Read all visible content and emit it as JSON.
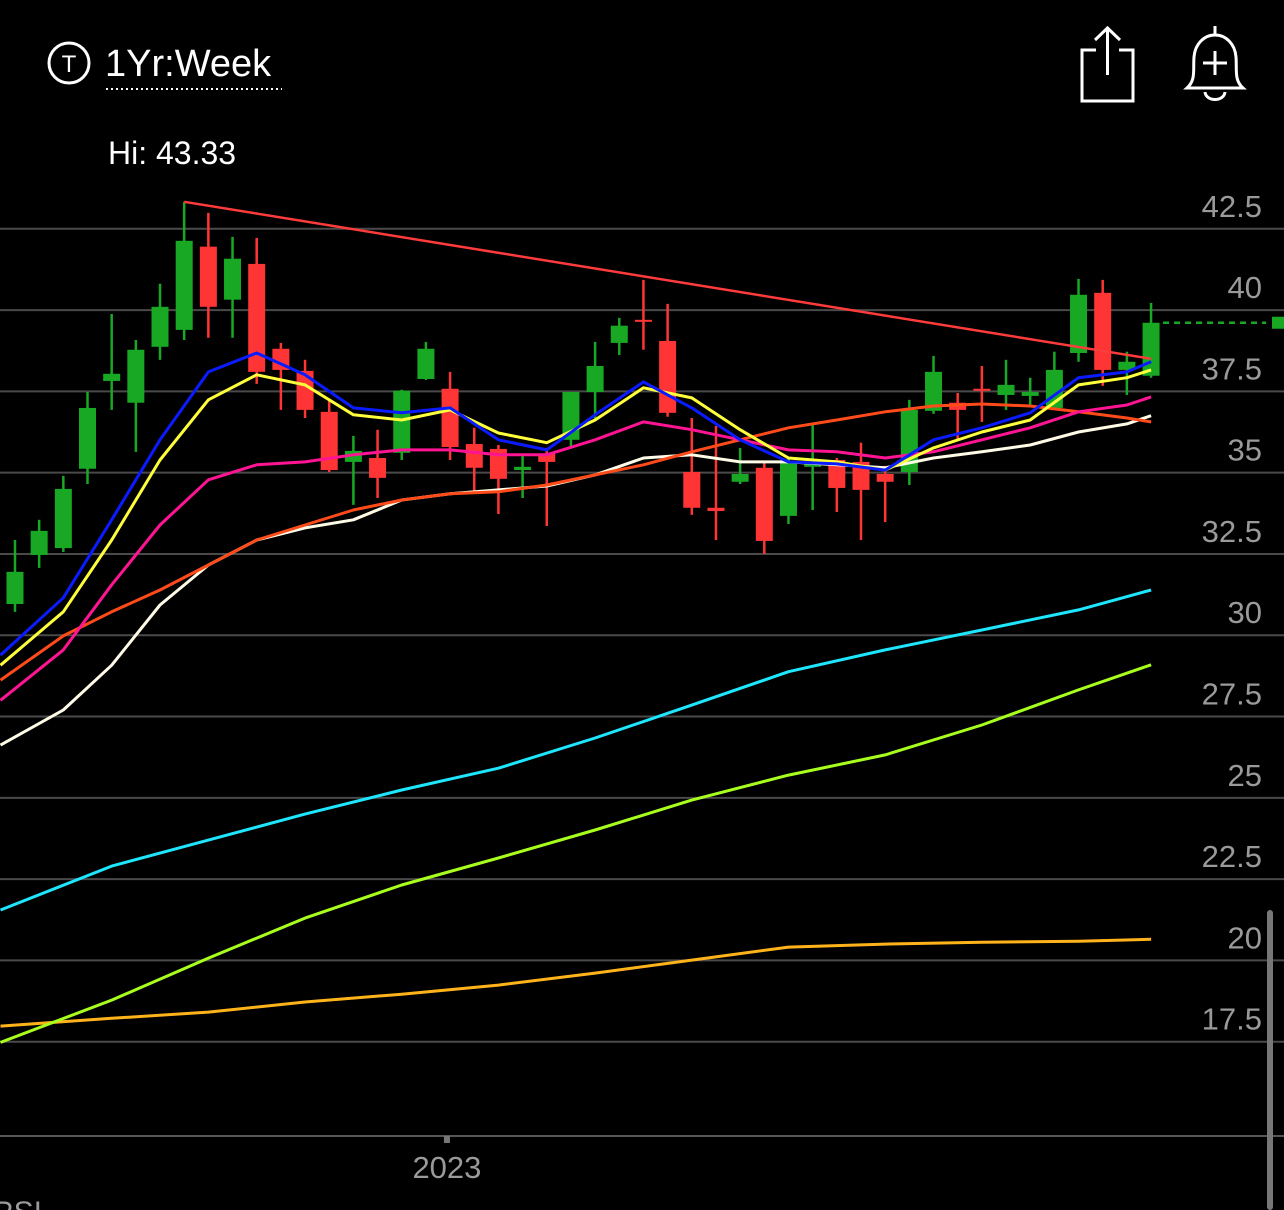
{
  "header": {
    "timeframe": "1Yr:Week",
    "high_label": "Hi: 43.33"
  },
  "footer": {
    "indicator": "RSI"
  },
  "chart_data": {
    "type": "candlestick",
    "x": [
      0,
      1,
      2,
      3,
      4,
      5,
      6,
      7,
      8,
      9,
      10,
      11,
      12,
      13,
      14,
      15,
      16,
      17,
      18,
      19,
      20,
      21,
      22,
      23,
      24,
      25,
      26,
      27,
      28,
      29,
      30,
      31,
      32,
      33,
      34,
      35,
      36,
      37,
      38,
      39,
      40,
      41,
      42,
      43,
      44,
      45,
      46,
      47
    ],
    "open": [
      30.96,
      32.47,
      32.68,
      35.12,
      37.82,
      37.15,
      38.87,
      39.39,
      41.95,
      40.32,
      41.42,
      38.81,
      38.13,
      36.87,
      35.33,
      35.45,
      35.61,
      37.88,
      37.58,
      35.88,
      35.73,
      35.08,
      35.58,
      36.01,
      37.48,
      38.99,
      39.7,
      39.05,
      35.02,
      33.92,
      34.72,
      35.15,
      33.67,
      35.18,
      35.39,
      35.33,
      34.96,
      35.02,
      36.9,
      37.15,
      37.58,
      37.39,
      37.36,
      36.99,
      38.68,
      40.53,
      38.16,
      37.98
    ],
    "high": [
      32.93,
      33.55,
      34.9,
      37.48,
      39.88,
      39.08,
      40.81,
      43.33,
      42.99,
      42.25,
      42.22,
      38.99,
      38.47,
      37.24,
      36.13,
      36.32,
      37.55,
      39.02,
      38.1,
      36.38,
      35.85,
      35.52,
      35.76,
      37.48,
      39.02,
      39.76,
      40.93,
      40.19,
      36.68,
      36.44,
      35.76,
      35.33,
      35.45,
      36.47,
      35.45,
      35.92,
      35.21,
      37.24,
      38.59,
      37.45,
      38.28,
      38.47,
      37.92,
      38.72,
      40.96,
      40.93,
      38.72,
      40.22
    ],
    "low": [
      30.72,
      32.07,
      32.56,
      34.65,
      36.93,
      35.64,
      38.47,
      39.08,
      39.15,
      39.15,
      37.73,
      36.93,
      36.68,
      35.02,
      34.01,
      34.22,
      35.39,
      37.85,
      35.39,
      34.35,
      33.73,
      34.22,
      33.36,
      35.76,
      36.62,
      38.62,
      38.78,
      36.72,
      33.7,
      32.93,
      34.65,
      32.5,
      33.42,
      33.85,
      33.79,
      32.93,
      33.48,
      34.62,
      36.81,
      36.01,
      36.56,
      36.93,
      37.08,
      36.93,
      38.41,
      37.67,
      37.39,
      37.92
    ],
    "close": [
      31.95,
      33.21,
      34.5,
      36.99,
      38.04,
      38.78,
      40.1,
      42.13,
      40.1,
      41.58,
      38.1,
      38.16,
      36.93,
      35.08,
      35.67,
      34.84,
      37.52,
      38.81,
      35.79,
      35.15,
      34.81,
      35.18,
      35.33,
      37.48,
      38.28,
      39.52,
      39.64,
      36.84,
      33.92,
      33.82,
      34.96,
      32.9,
      35.33,
      35.33,
      34.53,
      34.47,
      34.72,
      36.93,
      38.1,
      36.93,
      37.52,
      37.7,
      37.48,
      38.16,
      40.47,
      38.16,
      38.41,
      39.61
    ],
    "up_color": "#18a824",
    "down_color": "#ff3535",
    "xlim": [
      -0.62,
      52.5
    ],
    "xticks": [
      {
        "value": 17.87,
        "label": "2023"
      }
    ],
    "ylim": [
      14.6,
      44.0
    ],
    "yticks": [
      42.5,
      40,
      37.5,
      35,
      32.5,
      30,
      27.5,
      25,
      22.5,
      20,
      17.5
    ],
    "grid": true,
    "last_price_line": {
      "color": "#18a824"
    },
    "trendline": {
      "color": "#ff3b3b",
      "x": [
        7,
        47
      ],
      "values": [
        43.33,
        38.5
      ]
    },
    "lines": [
      {
        "color": "#ffb31a",
        "x": [
          -0.6,
          4,
          8,
          12,
          16,
          20,
          24,
          28,
          32,
          36,
          40,
          44,
          47
        ],
        "values": [
          17.98,
          18.22,
          18.41,
          18.72,
          18.96,
          19.24,
          19.61,
          20.01,
          20.41,
          20.5,
          20.56,
          20.59,
          20.65
        ]
      },
      {
        "color": "#a8ff1e",
        "x": [
          -0.6,
          4,
          8,
          12,
          16,
          20,
          24,
          28,
          32,
          36,
          40,
          44,
          47
        ],
        "values": [
          17.48,
          18.78,
          20.07,
          21.3,
          22.32,
          23.15,
          24.01,
          24.93,
          25.7,
          26.32,
          27.24,
          28.32,
          29.09
        ]
      },
      {
        "color": "#1ee6ff",
        "x": [
          -0.6,
          4,
          8,
          12,
          16,
          20,
          24,
          28,
          32,
          36,
          40,
          44,
          47
        ],
        "values": [
          21.55,
          22.9,
          23.7,
          24.5,
          25.24,
          25.91,
          26.84,
          27.85,
          28.88,
          29.55,
          30.16,
          30.78,
          31.39
        ]
      },
      {
        "color": "#fffbe6",
        "x": [
          -0.6,
          2,
          4,
          6,
          8,
          10,
          12,
          14,
          16,
          18,
          20,
          22,
          24,
          26,
          28,
          30,
          32,
          34,
          36,
          38,
          40,
          42,
          44,
          46,
          47
        ],
        "values": [
          26.62,
          27.7,
          29.08,
          30.93,
          32.16,
          32.93,
          33.3,
          33.55,
          34.16,
          34.35,
          34.47,
          34.59,
          34.93,
          35.45,
          35.55,
          35.33,
          35.33,
          35.24,
          35.15,
          35.45,
          35.64,
          35.85,
          36.25,
          36.5,
          36.75
        ]
      },
      {
        "color": "#ff4a1a",
        "x": [
          -0.6,
          2,
          4,
          6,
          8,
          10,
          12,
          14,
          16,
          18,
          20,
          22,
          24,
          26,
          28,
          30,
          32,
          34,
          36,
          38,
          40,
          42,
          44,
          46,
          47
        ],
        "values": [
          28.62,
          29.98,
          30.72,
          31.39,
          32.16,
          32.93,
          33.39,
          33.85,
          34.16,
          34.35,
          34.41,
          34.62,
          34.93,
          35.24,
          35.64,
          36.01,
          36.38,
          36.62,
          36.87,
          37.05,
          37.11,
          37.05,
          36.87,
          36.68,
          36.56
        ]
      },
      {
        "color": "#ff1493",
        "x": [
          -0.6,
          2,
          4,
          6,
          8,
          10,
          12,
          14,
          16,
          18,
          20,
          22,
          24,
          26,
          28,
          30,
          32,
          34,
          36,
          38,
          40,
          42,
          44,
          46,
          47
        ],
        "values": [
          28.0,
          29.55,
          31.55,
          33.39,
          34.78,
          35.24,
          35.33,
          35.55,
          35.7,
          35.7,
          35.55,
          35.55,
          36.01,
          36.56,
          36.32,
          36.01,
          35.7,
          35.64,
          35.45,
          35.64,
          36.01,
          36.38,
          36.87,
          37.08,
          37.33
        ]
      },
      {
        "color": "#ffff3c",
        "x": [
          -0.6,
          2,
          4,
          6,
          8,
          10,
          12,
          14,
          16,
          18,
          20,
          22,
          24,
          26,
          28,
          30,
          32,
          34,
          36,
          38,
          40,
          42,
          44,
          46,
          47
        ],
        "values": [
          29.08,
          30.72,
          32.93,
          35.39,
          37.24,
          38.01,
          37.7,
          36.78,
          36.62,
          36.93,
          36.22,
          35.92,
          36.62,
          37.61,
          37.3,
          36.32,
          35.45,
          35.33,
          35.08,
          35.76,
          36.25,
          36.62,
          37.7,
          37.92,
          38.16
        ]
      },
      {
        "color": "#0a1cff",
        "x": [
          -0.6,
          2,
          4,
          6,
          8,
          10,
          12,
          14,
          16,
          18,
          20,
          22,
          24,
          26,
          28,
          30,
          32,
          34,
          36,
          38,
          40,
          42,
          44,
          46,
          47
        ],
        "values": [
          29.39,
          31.15,
          33.55,
          36.01,
          38.1,
          38.68,
          38.01,
          36.99,
          36.84,
          36.99,
          36.01,
          35.7,
          36.78,
          37.79,
          36.99,
          36.01,
          35.33,
          35.27,
          35.08,
          36.01,
          36.38,
          36.84,
          37.92,
          38.1,
          38.41
        ]
      }
    ]
  }
}
